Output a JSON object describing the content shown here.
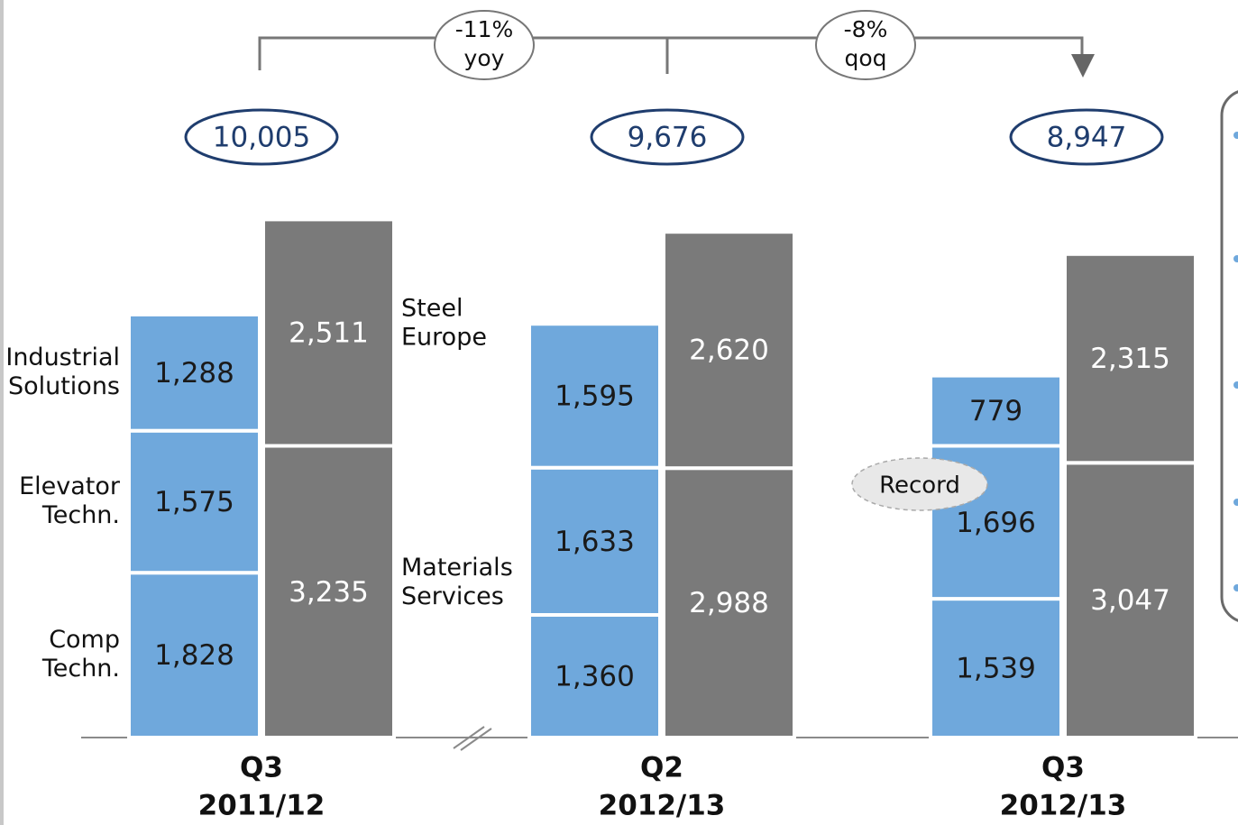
{
  "chart_data": {
    "type": "grouped-stacked-bar",
    "categories": [
      [
        "Q3",
        "2011/12"
      ],
      [
        "Q2",
        "2012/13"
      ],
      [
        "Q3",
        "2012/13"
      ]
    ],
    "series": [
      {
        "name": [
          "Comp",
          "Techn."
        ],
        "stack": "left",
        "color": "#6fa8dc",
        "values": [
          1828,
          1360,
          1539
        ],
        "value_labels": [
          "1,828",
          "1,360",
          "1,539"
        ]
      },
      {
        "name": [
          "Elevator",
          "Techn."
        ],
        "stack": "left",
        "color": "#6fa8dc",
        "values": [
          1575,
          1633,
          1696
        ],
        "value_labels": [
          "1,575",
          "1,633",
          "1,696"
        ]
      },
      {
        "name": [
          "Industrial",
          "Solutions"
        ],
        "stack": "left",
        "color": "#6fa8dc",
        "values": [
          1288,
          1595,
          779
        ],
        "value_labels": [
          "1,288",
          "1,595",
          "779"
        ]
      },
      {
        "name": [
          "Materials",
          "Services"
        ],
        "stack": "right",
        "color": "#7a7a7a",
        "values": [
          3235,
          2988,
          3047
        ],
        "value_labels": [
          "3,235",
          "2,988",
          "3,047"
        ]
      },
      {
        "name": [
          "Steel",
          "Europe"
        ],
        "stack": "right",
        "color": "#7a7a7a",
        "values": [
          2511,
          2620,
          2315
        ],
        "value_labels": [
          "2,511",
          "2,620",
          "2,315"
        ]
      }
    ],
    "totals": {
      "values": [
        10005,
        9676,
        8947
      ],
      "value_labels": [
        "10,005",
        "9,676",
        "8,947"
      ]
    },
    "annotations": [
      {
        "text": [
          "-11%",
          "yoy"
        ]
      },
      {
        "text": [
          "-8%",
          "qoq"
        ]
      },
      {
        "text": "Record"
      }
    ]
  }
}
